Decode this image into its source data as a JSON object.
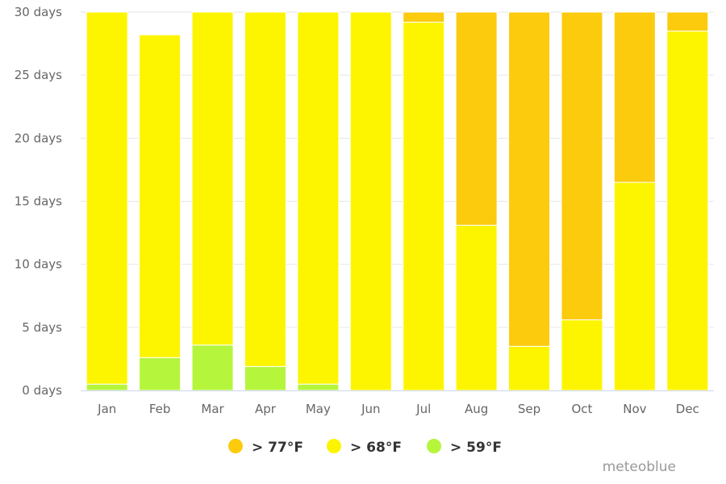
{
  "chart_data": {
    "type": "bar",
    "stacked": true,
    "categories": [
      "Jan",
      "Feb",
      "Mar",
      "Apr",
      "May",
      "Jun",
      "Jul",
      "Aug",
      "Sep",
      "Oct",
      "Nov",
      "Dec"
    ],
    "series": [
      {
        "name": "> 59°F",
        "color": "#b5f53c",
        "values": [
          0.5,
          2.6,
          3.6,
          1.9,
          0.5,
          0,
          0,
          0,
          0,
          0,
          0,
          0
        ]
      },
      {
        "name": "> 68°F",
        "color": "#fdf500",
        "values": [
          29.5,
          25.6,
          26.4,
          28.1,
          29.5,
          30,
          29.2,
          13.1,
          3.5,
          5.6,
          16.5,
          28.5
        ]
      },
      {
        "name": "> 77°F",
        "color": "#fccb0e",
        "values": [
          0,
          0,
          0,
          0,
          0,
          0,
          0.8,
          16.9,
          26.5,
          24.4,
          13.5,
          1.5
        ]
      }
    ],
    "legend_order": [
      "> 77°F",
      "> 68°F",
      "> 59°F"
    ],
    "y_ticks": [
      "0 days",
      "5 days",
      "10 days",
      "15 days",
      "20 days",
      "25 days",
      "30 days"
    ],
    "y_tick_values": [
      0,
      5,
      10,
      15,
      20,
      25,
      30
    ],
    "ylim": [
      0,
      30
    ],
    "title": "",
    "xlabel": "",
    "ylabel": "",
    "grid": true,
    "legend_position": "bottom-center"
  },
  "credit": "meteoblue"
}
